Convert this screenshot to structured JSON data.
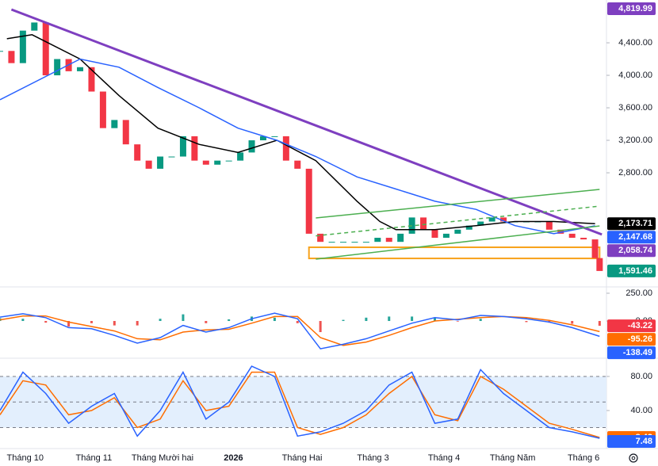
{
  "chart_data": [
    {
      "type": "candlestick",
      "x": [
        -11,
        -6,
        -1,
        4,
        9,
        14,
        19,
        24,
        29,
        34,
        39,
        44,
        49,
        54,
        59,
        64,
        69,
        74,
        79,
        84,
        89,
        94,
        99,
        104,
        109,
        114,
        119,
        124,
        129,
        134,
        139,
        144,
        149,
        154,
        159,
        164,
        169,
        174,
        179,
        184,
        189,
        194,
        199,
        204,
        209,
        214,
        219,
        224,
        229,
        234,
        239,
        244,
        249,
        251
      ],
      "close": [
        4300,
        4150,
        4550,
        4650,
        4000,
        4200,
        4050,
        4100,
        3800,
        3350,
        3450,
        3150,
        2950,
        2850,
        3000,
        3000,
        3250,
        2950,
        2900,
        2950,
        2950,
        3050,
        3200,
        3250,
        3250,
        2950,
        2850,
        2050,
        1950,
        1950,
        1950,
        1950,
        1950,
        2000,
        1950,
        2050,
        2250,
        2100,
        2000,
        2050,
        2100,
        2150,
        2200,
        2250,
        2200,
        2200,
        2200,
        2200,
        2100,
        2050,
        2000,
        1980,
        1750,
        1591.46
      ],
      "colors": {
        "up": "#089981",
        "down": "#f23645"
      },
      "lines": [
        {
          "color": "#000000",
          "x": [
            -8,
            3,
            24,
            41,
            58,
            76,
            93,
            110,
            127,
            145,
            155,
            162,
            179,
            197,
            214,
            231,
            249
          ],
          "values": [
            4450,
            4500,
            4200,
            3750,
            3350,
            3150,
            3050,
            3200,
            2950,
            2450,
            2200,
            2100,
            2100,
            2150,
            2200,
            2200,
            2173.71
          ]
        },
        {
          "color": "#2962ff",
          "x": [
            -11,
            24,
            41,
            58,
            76,
            93,
            110,
            127,
            145,
            162,
            179,
            197,
            214,
            231,
            249
          ],
          "values": [
            3700,
            4200,
            4100,
            3850,
            3600,
            3350,
            3200,
            3000,
            2750,
            2600,
            2450,
            2350,
            2150,
            2050,
            2147.68
          ]
        },
        {
          "color": "#7e3fc0",
          "x": [
            -6,
            252
          ],
          "values": [
            4810,
            2040
          ]
        },
        {
          "color": "#4caf50",
          "x": [
            127,
            251
          ],
          "values": [
            2244,
            2595
          ]
        },
        {
          "color": "#4caf50",
          "x": [
            127,
            251
          ],
          "values": [
            1737,
            2146
          ]
        },
        {
          "color": "#4caf50",
          "x": [
            127,
            251
          ],
          "values": [
            2024,
            2390
          ],
          "dashed": true
        }
      ],
      "box": {
        "x": [
          124,
          251
        ],
        "values": [
          1883,
          1746
        ],
        "color": "#f7a21b"
      },
      "xlim": [
        -11,
        254
      ],
      "ylim": [
        1415,
        4927
      ],
      "xticks": [
        {
          "value": 0,
          "label": "Tháng 10"
        },
        {
          "value": 30,
          "label": "Tháng 11"
        },
        {
          "value": 60,
          "label": "Tháng Mười hai"
        },
        {
          "value": 91,
          "label": "2026"
        },
        {
          "value": 121,
          "label": "Tháng Hai"
        },
        {
          "value": 152,
          "label": "Tháng 3"
        },
        {
          "value": 183,
          "label": "Tháng 4"
        },
        {
          "value": 213,
          "label": "Tháng Năm"
        },
        {
          "value": 244,
          "label": "Tháng 6"
        }
      ],
      "yticks": [
        {
          "value": 4400,
          "label": "4,400.00"
        },
        {
          "value": 4000,
          "label": "4,000.00"
        },
        {
          "value": 3600,
          "label": "3,600.00"
        },
        {
          "value": 3200,
          "label": "3,200.00"
        },
        {
          "value": 2800,
          "label": "2,800.00"
        }
      ],
      "price_labels": [
        {
          "value": 4819.99,
          "label": "4,819.99",
          "color": "#7e3fc0"
        },
        {
          "value": 2173.71,
          "label": "2,173.71",
          "color": "#000000"
        },
        {
          "value": 2147.68,
          "label": "2,147.68",
          "color": "#2962ff"
        },
        {
          "value": 2058.74,
          "label": "2,058.74",
          "color": "#7e3fc0"
        },
        {
          "value": 1591.46,
          "label": "1,591.46",
          "color": "#089981"
        }
      ]
    },
    {
      "type": "macd",
      "x": [
        -11,
        -1,
        9,
        19,
        29,
        39,
        49,
        59,
        69,
        79,
        89,
        99,
        109,
        119,
        129,
        139,
        149,
        159,
        169,
        179,
        189,
        199,
        209,
        219,
        229,
        239,
        251
      ],
      "macd": {
        "color": "#2962ff",
        "values": [
          35,
          65,
          30,
          -60,
          -70,
          -130,
          -200,
          -150,
          -40,
          -100,
          -60,
          20,
          70,
          20,
          -250,
          -210,
          -160,
          -90,
          -20,
          30,
          10,
          50,
          40,
          20,
          -10,
          -60,
          -138.49
        ]
      },
      "signal": {
        "color": "#ff6d00",
        "values": [
          10,
          45,
          45,
          -10,
          -50,
          -90,
          -160,
          -170,
          -100,
          -80,
          -75,
          -20,
          40,
          40,
          -150,
          -220,
          -190,
          -130,
          -60,
          0,
          15,
          30,
          40,
          30,
          5,
          -35,
          -95.26
        ]
      },
      "histogram": {
        "colors": {
          "up": "#26a69a",
          "down": "#ef5350"
        },
        "values": [
          25,
          20,
          -15,
          -50,
          -20,
          -40,
          -40,
          20,
          60,
          -20,
          15,
          40,
          30,
          -20,
          -100,
          10,
          30,
          40,
          40,
          30,
          -5,
          20,
          0,
          -10,
          -15,
          -25,
          -43.22
        ]
      },
      "ylim": [
        -321,
        307
      ],
      "yticks": [
        {
          "value": 250,
          "label": "250.00"
        },
        {
          "value": 0,
          "label": "0.00"
        }
      ],
      "price_labels": [
        {
          "value": -43.22,
          "color": "#f23645"
        },
        {
          "value": -95.26,
          "color": "#ff6d00"
        },
        {
          "value": -138.49,
          "color": "#2962ff"
        }
      ]
    },
    {
      "type": "stochastic",
      "x": [
        -11,
        -1,
        9,
        19,
        29,
        39,
        49,
        59,
        69,
        79,
        89,
        99,
        109,
        119,
        129,
        139,
        149,
        159,
        169,
        179,
        189,
        199,
        209,
        219,
        229,
        239,
        251
      ],
      "k": {
        "color": "#2962ff",
        "values": [
          40,
          85,
          60,
          25,
          45,
          60,
          10,
          40,
          85,
          30,
          50,
          92,
          80,
          10,
          15,
          25,
          40,
          70,
          85,
          25,
          30,
          88,
          60,
          40,
          20,
          15,
          7.48
        ]
      },
      "d": {
        "color": "#ff6d00",
        "values": [
          35,
          75,
          70,
          35,
          40,
          55,
          20,
          30,
          75,
          40,
          45,
          85,
          85,
          20,
          12,
          20,
          35,
          60,
          80,
          35,
          28,
          80,
          65,
          45,
          25,
          18,
          8.42
        ]
      },
      "levels": [
        80,
        50,
        20
      ],
      "band": [
        20,
        80
      ],
      "band_color": "#e3effd",
      "ylim": [
        -3.7,
        98.6
      ],
      "yticks": [
        {
          "value": 80,
          "label": "80.00"
        },
        {
          "value": 40,
          "label": "40.00"
        }
      ],
      "price_labels": [
        {
          "value": 8.42,
          "color": "#ff6d00"
        },
        {
          "value": 7.48,
          "color": "#2962ff"
        }
      ]
    }
  ]
}
